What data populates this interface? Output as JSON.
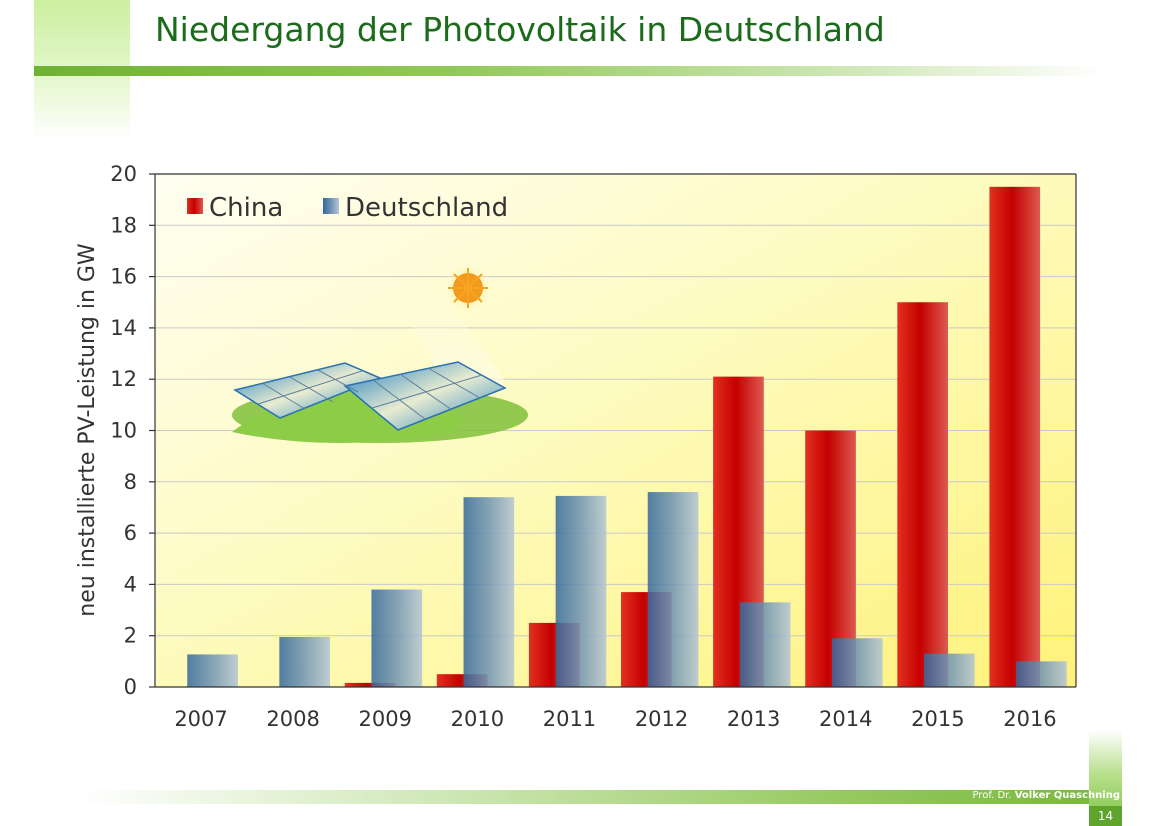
{
  "slide": {
    "title": "Niedergang der Photovoltaik in Deutschland",
    "author_prefix": "Prof. Dr.",
    "author_name": "Volker Quaschning",
    "page_number": "14"
  },
  "chart_data": {
    "type": "bar",
    "categories": [
      "2007",
      "2008",
      "2009",
      "2010",
      "2011",
      "2012",
      "2013",
      "2014",
      "2015",
      "2016"
    ],
    "series": [
      {
        "name": "China",
        "values": [
          0.0,
          0.0,
          0.16,
          0.5,
          2.5,
          3.7,
          12.1,
          10.0,
          15.0,
          19.5
        ],
        "color": "#cc0000"
      },
      {
        "name": "Deutschland",
        "values": [
          1.27,
          1.95,
          3.8,
          7.4,
          7.45,
          7.6,
          3.3,
          1.9,
          1.3,
          1.0
        ],
        "color": "#3a6fa8"
      }
    ],
    "xlabel": "",
    "ylabel": "neu installierte PV-Leistung in GW",
    "ylim": [
      0,
      20
    ],
    "yticks": [
      0,
      2,
      4,
      6,
      8,
      10,
      12,
      14,
      16,
      18,
      20
    ],
    "grid": true,
    "legend_position": "top-left"
  }
}
